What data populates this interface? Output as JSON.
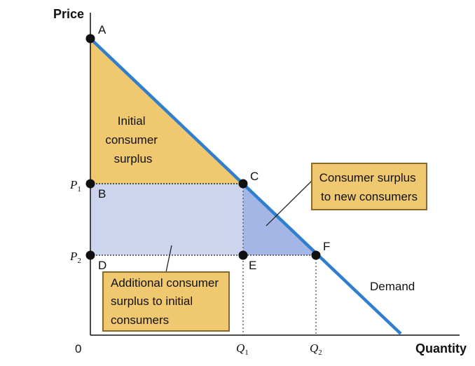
{
  "axes": {
    "y_label": "Price",
    "x_label": "Quantity",
    "origin_label": "0"
  },
  "ticks": {
    "p1": {
      "letter": "P",
      "sub": "1"
    },
    "p2": {
      "letter": "P",
      "sub": "2"
    },
    "q1": {
      "letter": "Q",
      "sub": "1"
    },
    "q2": {
      "letter": "Q",
      "sub": "2"
    }
  },
  "points": {
    "a": "A",
    "b": "B",
    "c": "C",
    "d": "D",
    "e": "E",
    "f": "F"
  },
  "regions": {
    "initial_surplus": [
      "Initial",
      "consumer",
      "surplus"
    ]
  },
  "callouts": {
    "new_consumers": [
      "Consumer surplus",
      "to new consumers"
    ],
    "additional": [
      "Additional consumer",
      "surplus to initial",
      "consumers"
    ]
  },
  "curve_label": "Demand",
  "colors": {
    "demand_line": "#2f7fce",
    "initial_surplus_fill": "#f0c870",
    "additional_surplus_fill": "#ccd4ee",
    "new_surplus_fill": "#a3b6e6",
    "callout_fill": "#f0c870",
    "callout_border": "#8a6a2a"
  }
}
